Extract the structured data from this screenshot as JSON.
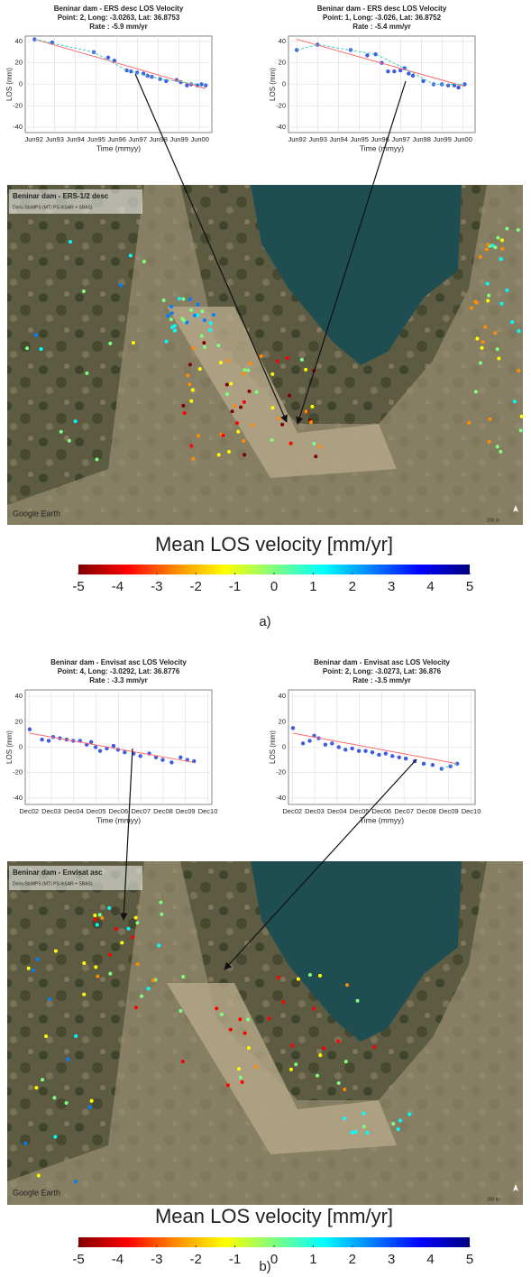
{
  "chart_data": [
    {
      "type": "scatter",
      "title": "Beninar dam - ERS desc  LOS Velocity",
      "subtitle": "Point: 2,  Long: -3.0263,  Lat: 36.8753",
      "rate": "Rate : -5.9 mm/yr",
      "xlabel": "Time (mmyy)",
      "ylabel": "LOS (mm)",
      "grid": true,
      "xlim": [
        1992.0,
        2001.0
      ],
      "ylim": [
        -45,
        45
      ],
      "yticks": [
        -40,
        -20,
        0,
        20,
        40
      ],
      "xticks": [
        {
          "value": 1992.42,
          "label": "Jun92"
        },
        {
          "value": 1993.42,
          "label": "Jun93"
        },
        {
          "value": 1994.42,
          "label": "Jun94"
        },
        {
          "value": 1995.42,
          "label": "Jun95"
        },
        {
          "value": 1996.42,
          "label": "Jun96"
        },
        {
          "value": 1997.42,
          "label": "Jun97"
        },
        {
          "value": 1998.42,
          "label": "Jun98"
        },
        {
          "value": 1999.42,
          "label": "Jun99"
        },
        {
          "value": 2000.42,
          "label": "Jun00"
        }
      ],
      "series": [
        {
          "style": "points",
          "color": "#3d5ce0",
          "x": [
            1992.45,
            1993.3,
            1995.3,
            1996.0,
            1996.3,
            1996.9,
            1997.1,
            1997.4,
            1997.7,
            1997.9,
            1998.1,
            1998.5,
            1998.8,
            1999.3,
            1999.5,
            1999.8,
            2000.0,
            2000.3,
            2000.5,
            2000.7
          ],
          "values": [
            42,
            39,
            30,
            25,
            22,
            13,
            12,
            11,
            10,
            8,
            7,
            5,
            3,
            4,
            2,
            -1,
            0,
            -1,
            0,
            -1
          ]
        },
        {
          "style": "line",
          "color": "#ff6a6a",
          "x": [
            1992.45,
            2000.7
          ],
          "values": [
            42,
            -4
          ]
        },
        {
          "style": "dashed",
          "color": "#41c9c0",
          "x": [
            1992.45,
            1995.3,
            1996.9,
            1998.5,
            2000.7
          ],
          "values": [
            42,
            30,
            13,
            5,
            -1
          ]
        }
      ]
    },
    {
      "type": "scatter",
      "title": "Beninar dam - ERS desc  LOS Velocity",
      "subtitle": "Point: 1,  Long: -3.026,  Lat: 36.8752",
      "rate": "Rate : -5.4 mm/yr",
      "xlabel": "Time (mmyy)",
      "ylabel": "LOS (mm)",
      "grid": true,
      "xlim": [
        1992.0,
        2001.0
      ],
      "ylim": [
        -45,
        45
      ],
      "yticks": [
        -40,
        -20,
        0,
        20,
        40
      ],
      "xticks": [
        {
          "value": 1992.42,
          "label": "Jun92"
        },
        {
          "value": 1993.42,
          "label": "Jun93"
        },
        {
          "value": 1994.42,
          "label": "Jun94"
        },
        {
          "value": 1995.42,
          "label": "Jun95"
        },
        {
          "value": 1996.42,
          "label": "Jun96"
        },
        {
          "value": 1997.42,
          "label": "Jun97"
        },
        {
          "value": 1998.42,
          "label": "Jun98"
        },
        {
          "value": 1999.42,
          "label": "Jun99"
        },
        {
          "value": 2000.42,
          "label": "Jun00"
        }
      ],
      "series": [
        {
          "style": "points",
          "color": "#3d5ce0",
          "x": [
            1992.4,
            1993.4,
            1995.0,
            1995.8,
            1996.2,
            1996.5,
            1996.8,
            1997.1,
            1997.4,
            1997.6,
            1997.8,
            1998.0,
            1998.5,
            1999.0,
            1999.4,
            1999.7,
            2000.0,
            2000.2,
            2000.5
          ],
          "values": [
            32,
            37,
            32,
            27,
            28,
            20,
            12,
            12,
            13,
            15,
            10,
            8,
            3,
            0,
            0,
            -1,
            -1,
            -3,
            0
          ]
        },
        {
          "style": "line",
          "color": "#ff6a6a",
          "x": [
            1992.4,
            2000.5
          ],
          "values": [
            42,
            -2
          ]
        },
        {
          "style": "dashed",
          "color": "#41c9c0",
          "x": [
            1992.4,
            1993.4,
            1996.2,
            1997.6,
            1999.0,
            2000.5
          ],
          "values": [
            32,
            37,
            28,
            15,
            0,
            0
          ]
        }
      ]
    },
    {
      "type": "scatter",
      "title": "Beninar dam - Envisat asc  LOS Velocity",
      "subtitle": "Point: 4,  Long: -3.0292,  Lat: 36.8776",
      "rate": "Rate : -3.3 mm/yr",
      "xlabel": "Time (mmyy)",
      "ylabel": "LOS (mm)",
      "grid": true,
      "xlim": [
        2002.75,
        2011.1
      ],
      "ylim": [
        -45,
        45
      ],
      "yticks": [
        -40,
        -20,
        0,
        20,
        40
      ],
      "xticks": [
        {
          "value": 2002.92,
          "label": "Dec02"
        },
        {
          "value": 2003.92,
          "label": "Dec03"
        },
        {
          "value": 2004.92,
          "label": "Dec04"
        },
        {
          "value": 2005.92,
          "label": "Dec05"
        },
        {
          "value": 2006.92,
          "label": "Dec06"
        },
        {
          "value": 2007.92,
          "label": "Dec07"
        },
        {
          "value": 2008.92,
          "label": "Dec08"
        },
        {
          "value": 2009.92,
          "label": "Dec09"
        },
        {
          "value": 2010.92,
          "label": "Dec10"
        }
      ],
      "series": [
        {
          "style": "points",
          "color": "#3d5ce0",
          "x": [
            2002.95,
            2003.5,
            2003.8,
            2004.0,
            2004.3,
            2004.6,
            2004.9,
            2005.2,
            2005.5,
            2005.7,
            2005.9,
            2006.1,
            2006.4,
            2006.7,
            2006.9,
            2007.2,
            2007.6,
            2007.9,
            2008.3,
            2008.6,
            2008.9,
            2009.3,
            2009.7,
            2010.0,
            2010.3
          ],
          "values": [
            14,
            6,
            5,
            8,
            7,
            6,
            5,
            5,
            2,
            4,
            0,
            -3,
            -1,
            1,
            -2,
            -4,
            -5,
            -7,
            -5,
            -8,
            -10,
            -12,
            -8,
            -10,
            -11
          ]
        },
        {
          "style": "line",
          "color": "#ff6a6a",
          "x": [
            2002.95,
            2010.3
          ],
          "values": [
            11,
            -12
          ]
        }
      ]
    },
    {
      "type": "scatter",
      "title": "Beninar dam - Envisat asc  LOS Velocity",
      "subtitle": "Point: 2,  Long: -3.0273,  Lat: 36.876",
      "rate": "Rate : -3.5 mm/yr",
      "xlabel": "Time (mmyy)",
      "ylabel": "LOS (mm)",
      "grid": true,
      "xlim": [
        2002.75,
        2011.1
      ],
      "ylim": [
        -45,
        45
      ],
      "yticks": [
        -40,
        -20,
        0,
        20,
        40
      ],
      "xticks": [
        {
          "value": 2002.92,
          "label": "Dec02"
        },
        {
          "value": 2003.92,
          "label": "Dec03"
        },
        {
          "value": 2004.92,
          "label": "Dec04"
        },
        {
          "value": 2005.92,
          "label": "Dec05"
        },
        {
          "value": 2006.92,
          "label": "Dec06"
        },
        {
          "value": 2007.92,
          "label": "Dec07"
        },
        {
          "value": 2008.92,
          "label": "Dec08"
        },
        {
          "value": 2009.92,
          "label": "Dec09"
        },
        {
          "value": 2010.92,
          "label": "Dec10"
        }
      ],
      "series": [
        {
          "style": "points",
          "color": "#3d5ce0",
          "x": [
            2002.95,
            2003.4,
            2003.7,
            2003.9,
            2004.1,
            2004.4,
            2004.7,
            2005.0,
            2005.3,
            2005.6,
            2005.9,
            2006.2,
            2006.5,
            2006.8,
            2007.1,
            2007.4,
            2007.7,
            2008.0,
            2008.4,
            2008.8,
            2009.2,
            2009.6,
            2010.0,
            2010.3
          ],
          "values": [
            15,
            3,
            5,
            9,
            7,
            2,
            3,
            0,
            -2,
            -1,
            -3,
            -3,
            -4,
            -6,
            -5,
            -7,
            -8,
            -9,
            -11,
            -13,
            -14,
            -17,
            -15,
            -13
          ]
        },
        {
          "style": "line",
          "color": "#ff6a6a",
          "x": [
            2002.95,
            2010.3
          ],
          "values": [
            11,
            -13
          ]
        },
        {
          "style": "dashed",
          "color": "#41c9c0",
          "x": [
            2009.6,
            2010.3
          ],
          "values": [
            -17,
            -13
          ]
        }
      ]
    }
  ],
  "maps": [
    {
      "title": "Beninar dam - ERS-1/2 desc",
      "subtitle": "Doris-StaMPS (MT) PS-InSAR + SBAS)",
      "credit": "Google Earth",
      "scale": "200 m"
    },
    {
      "title": "Beninar dam - Envisat asc",
      "subtitle": "Doris-StaMPS (MT) PS-InSAR + SBAS)",
      "credit": "Google Earth",
      "scale": "200 m"
    }
  ],
  "colorbars": [
    {
      "label": "Mean LOS velocity [mm/yr]",
      "lim": [
        -5,
        5
      ],
      "ticks": [
        -5,
        -4,
        -3,
        -2,
        -1,
        0,
        1,
        2,
        3,
        4,
        5
      ],
      "colors": [
        "#7f0000",
        "#ff0000",
        "#ff8c00",
        "#ffff00",
        "#7fff7f",
        "#00ffff",
        "#0080ff",
        "#0000ff",
        "#00007f"
      ]
    },
    {
      "label": "Mean LOS velocity [mm/yr]",
      "lim": [
        -5,
        5
      ],
      "ticks": [
        -5,
        -4,
        -3,
        -2,
        -1,
        0,
        1,
        2,
        3,
        4,
        5
      ],
      "colors": [
        "#7f0000",
        "#ff0000",
        "#ff8c00",
        "#ffff00",
        "#7fff7f",
        "#00ffff",
        "#0080ff",
        "#0000ff",
        "#00007f"
      ]
    }
  ],
  "panels": [
    "a)",
    "b)"
  ]
}
